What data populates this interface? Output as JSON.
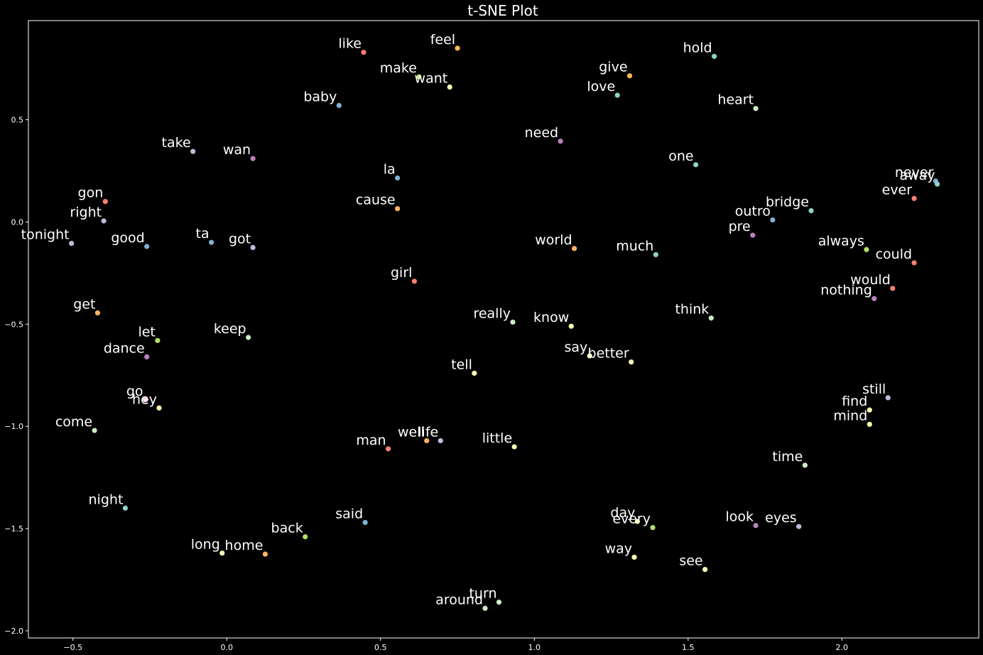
{
  "chart_data": {
    "type": "scatter",
    "title": "t-SNE Plot",
    "xlabel": "",
    "ylabel": "",
    "xlim": [
      -0.645,
      2.445
    ],
    "ylim": [
      -2.035,
      0.985
    ],
    "x_ticks": [
      -0.5,
      0.0,
      0.5,
      1.0,
      1.5,
      2.0
    ],
    "x_tick_labels": [
      "−0.5",
      "0.0",
      "0.5",
      "1.0",
      "1.5",
      "2.0"
    ],
    "y_ticks": [
      -2.0,
      -1.5,
      -1.0,
      -0.5,
      0.0,
      0.5
    ],
    "y_tick_labels": [
      "−2.0",
      "−1.5",
      "−1.0",
      "−0.5",
      "0.0",
      "0.5"
    ],
    "grid": false,
    "background": "#000000",
    "text_color": "#ffffff",
    "points": [
      {
        "label": "like",
        "x": 0.445,
        "y": 0.83,
        "color": "#fb8072"
      },
      {
        "label": "feel",
        "x": 0.75,
        "y": 0.85,
        "color": "#fdb462"
      },
      {
        "label": "make",
        "x": 0.625,
        "y": 0.71,
        "color": "#b3de69"
      },
      {
        "label": "want",
        "x": 0.725,
        "y": 0.66,
        "color": "#ffffb3"
      },
      {
        "label": "baby",
        "x": 0.365,
        "y": 0.57,
        "color": "#80b1d3"
      },
      {
        "label": "hold",
        "x": 1.585,
        "y": 0.81,
        "color": "#8dd3c7"
      },
      {
        "label": "give",
        "x": 1.31,
        "y": 0.715,
        "color": "#fdb462"
      },
      {
        "label": "love",
        "x": 1.27,
        "y": 0.62,
        "color": "#8dd3c7"
      },
      {
        "label": "heart",
        "x": 1.72,
        "y": 0.555,
        "color": "#ccebc5"
      },
      {
        "label": "need",
        "x": 1.085,
        "y": 0.395,
        "color": "#bc80bd"
      },
      {
        "label": "take",
        "x": -0.11,
        "y": 0.345,
        "color": "#bebada"
      },
      {
        "label": "wan",
        "x": 0.085,
        "y": 0.31,
        "color": "#bc80bd"
      },
      {
        "label": "one",
        "x": 1.525,
        "y": 0.28,
        "color": "#8dd3c7"
      },
      {
        "label": "la",
        "x": 0.555,
        "y": 0.215,
        "color": "#80b1d3"
      },
      {
        "label": "never",
        "x": 2.305,
        "y": 0.2,
        "color": "#80b1d3"
      },
      {
        "label": "away",
        "x": 2.31,
        "y": 0.185,
        "color": "#8dd3c7"
      },
      {
        "label": "ever",
        "x": 2.235,
        "y": 0.115,
        "color": "#fb8072"
      },
      {
        "label": "gon",
        "x": -0.395,
        "y": 0.1,
        "color": "#fb8072"
      },
      {
        "label": "cause",
        "x": 0.555,
        "y": 0.065,
        "color": "#fdb462"
      },
      {
        "label": "bridge",
        "x": 1.9,
        "y": 0.055,
        "color": "#8dd3c7"
      },
      {
        "label": "right",
        "x": -0.4,
        "y": 0.005,
        "color": "#bebada"
      },
      {
        "label": "outro",
        "x": 1.775,
        "y": 0.01,
        "color": "#80b1d3"
      },
      {
        "label": "pre",
        "x": 1.71,
        "y": -0.065,
        "color": "#bc80bd"
      },
      {
        "label": "tonight",
        "x": -0.505,
        "y": -0.105,
        "color": "#bebada"
      },
      {
        "label": "good",
        "x": -0.26,
        "y": -0.12,
        "color": "#80b1d3"
      },
      {
        "label": "ta",
        "x": -0.05,
        "y": -0.1,
        "color": "#80b1d3"
      },
      {
        "label": "got",
        "x": 0.085,
        "y": -0.125,
        "color": "#bebada"
      },
      {
        "label": "world",
        "x": 1.13,
        "y": -0.13,
        "color": "#fdb462"
      },
      {
        "label": "always",
        "x": 2.08,
        "y": -0.135,
        "color": "#b3de69"
      },
      {
        "label": "much",
        "x": 1.395,
        "y": -0.16,
        "color": "#8dd3c7"
      },
      {
        "label": "could",
        "x": 2.235,
        "y": -0.2,
        "color": "#fb8072"
      },
      {
        "label": "girl",
        "x": 0.61,
        "y": -0.29,
        "color": "#fb8072"
      },
      {
        "label": "would",
        "x": 2.165,
        "y": -0.325,
        "color": "#fb8072"
      },
      {
        "label": "nothing",
        "x": 2.105,
        "y": -0.375,
        "color": "#bc80bd"
      },
      {
        "label": "get",
        "x": -0.42,
        "y": -0.445,
        "color": "#fdb462"
      },
      {
        "label": "think",
        "x": 1.575,
        "y": -0.47,
        "color": "#ccebc5"
      },
      {
        "label": "really",
        "x": 0.93,
        "y": -0.49,
        "color": "#ccebc5"
      },
      {
        "label": "know",
        "x": 1.12,
        "y": -0.51,
        "color": "#ffffb3"
      },
      {
        "label": "keep",
        "x": 0.07,
        "y": -0.565,
        "color": "#ccebc5"
      },
      {
        "label": "let",
        "x": -0.225,
        "y": -0.58,
        "color": "#b3de69"
      },
      {
        "label": "dance",
        "x": -0.26,
        "y": -0.66,
        "color": "#bc80bd"
      },
      {
        "label": "say",
        "x": 1.18,
        "y": -0.655,
        "color": "#ffffb3"
      },
      {
        "label": "better",
        "x": 1.315,
        "y": -0.685,
        "color": "#ffffb3"
      },
      {
        "label": "tell",
        "x": 0.805,
        "y": -0.74,
        "color": "#ffffb3"
      },
      {
        "label": "still",
        "x": 2.15,
        "y": -0.86,
        "color": "#bebada"
      },
      {
        "label": "go",
        "x": -0.265,
        "y": -0.87,
        "color": "#fccde5"
      },
      {
        "label": "hey",
        "x": -0.22,
        "y": -0.91,
        "color": "#ffffb3"
      },
      {
        "label": "find",
        "x": 2.09,
        "y": -0.92,
        "color": "#ffffb3"
      },
      {
        "label": "mind",
        "x": 2.09,
        "y": -0.99,
        "color": "#ffffb3"
      },
      {
        "label": "come",
        "x": -0.43,
        "y": -1.02,
        "color": "#ccebc5"
      },
      {
        "label": "well",
        "x": 0.65,
        "y": -1.07,
        "color": "#fdb462"
      },
      {
        "label": "life",
        "x": 0.695,
        "y": -1.07,
        "color": "#bebada"
      },
      {
        "label": "little",
        "x": 0.935,
        "y": -1.1,
        "color": "#ffffb3"
      },
      {
        "label": "man",
        "x": 0.525,
        "y": -1.11,
        "color": "#fb8072"
      },
      {
        "label": "time",
        "x": 1.88,
        "y": -1.19,
        "color": "#ccebc5"
      },
      {
        "label": "night",
        "x": -0.33,
        "y": -1.4,
        "color": "#8dd3c7"
      },
      {
        "label": "said",
        "x": 0.45,
        "y": -1.47,
        "color": "#80b1d3"
      },
      {
        "label": "day",
        "x": 1.335,
        "y": -1.465,
        "color": "#ffffb3"
      },
      {
        "label": "every",
        "x": 1.385,
        "y": -1.495,
        "color": "#b3de69"
      },
      {
        "label": "look",
        "x": 1.72,
        "y": -1.485,
        "color": "#bc80bd"
      },
      {
        "label": "eyes",
        "x": 1.86,
        "y": -1.49,
        "color": "#bebada"
      },
      {
        "label": "back",
        "x": 0.255,
        "y": -1.54,
        "color": "#b3de69"
      },
      {
        "label": "long",
        "x": -0.015,
        "y": -1.62,
        "color": "#ffffb3"
      },
      {
        "label": "home",
        "x": 0.125,
        "y": -1.625,
        "color": "#fdb462"
      },
      {
        "label": "way",
        "x": 1.325,
        "y": -1.64,
        "color": "#ffffb3"
      },
      {
        "label": "see",
        "x": 1.555,
        "y": -1.7,
        "color": "#ffffb3"
      },
      {
        "label": "turn",
        "x": 0.885,
        "y": -1.86,
        "color": "#ccebc5"
      },
      {
        "label": "around",
        "x": 0.84,
        "y": -1.89,
        "color": "#ccebc5"
      }
    ]
  }
}
